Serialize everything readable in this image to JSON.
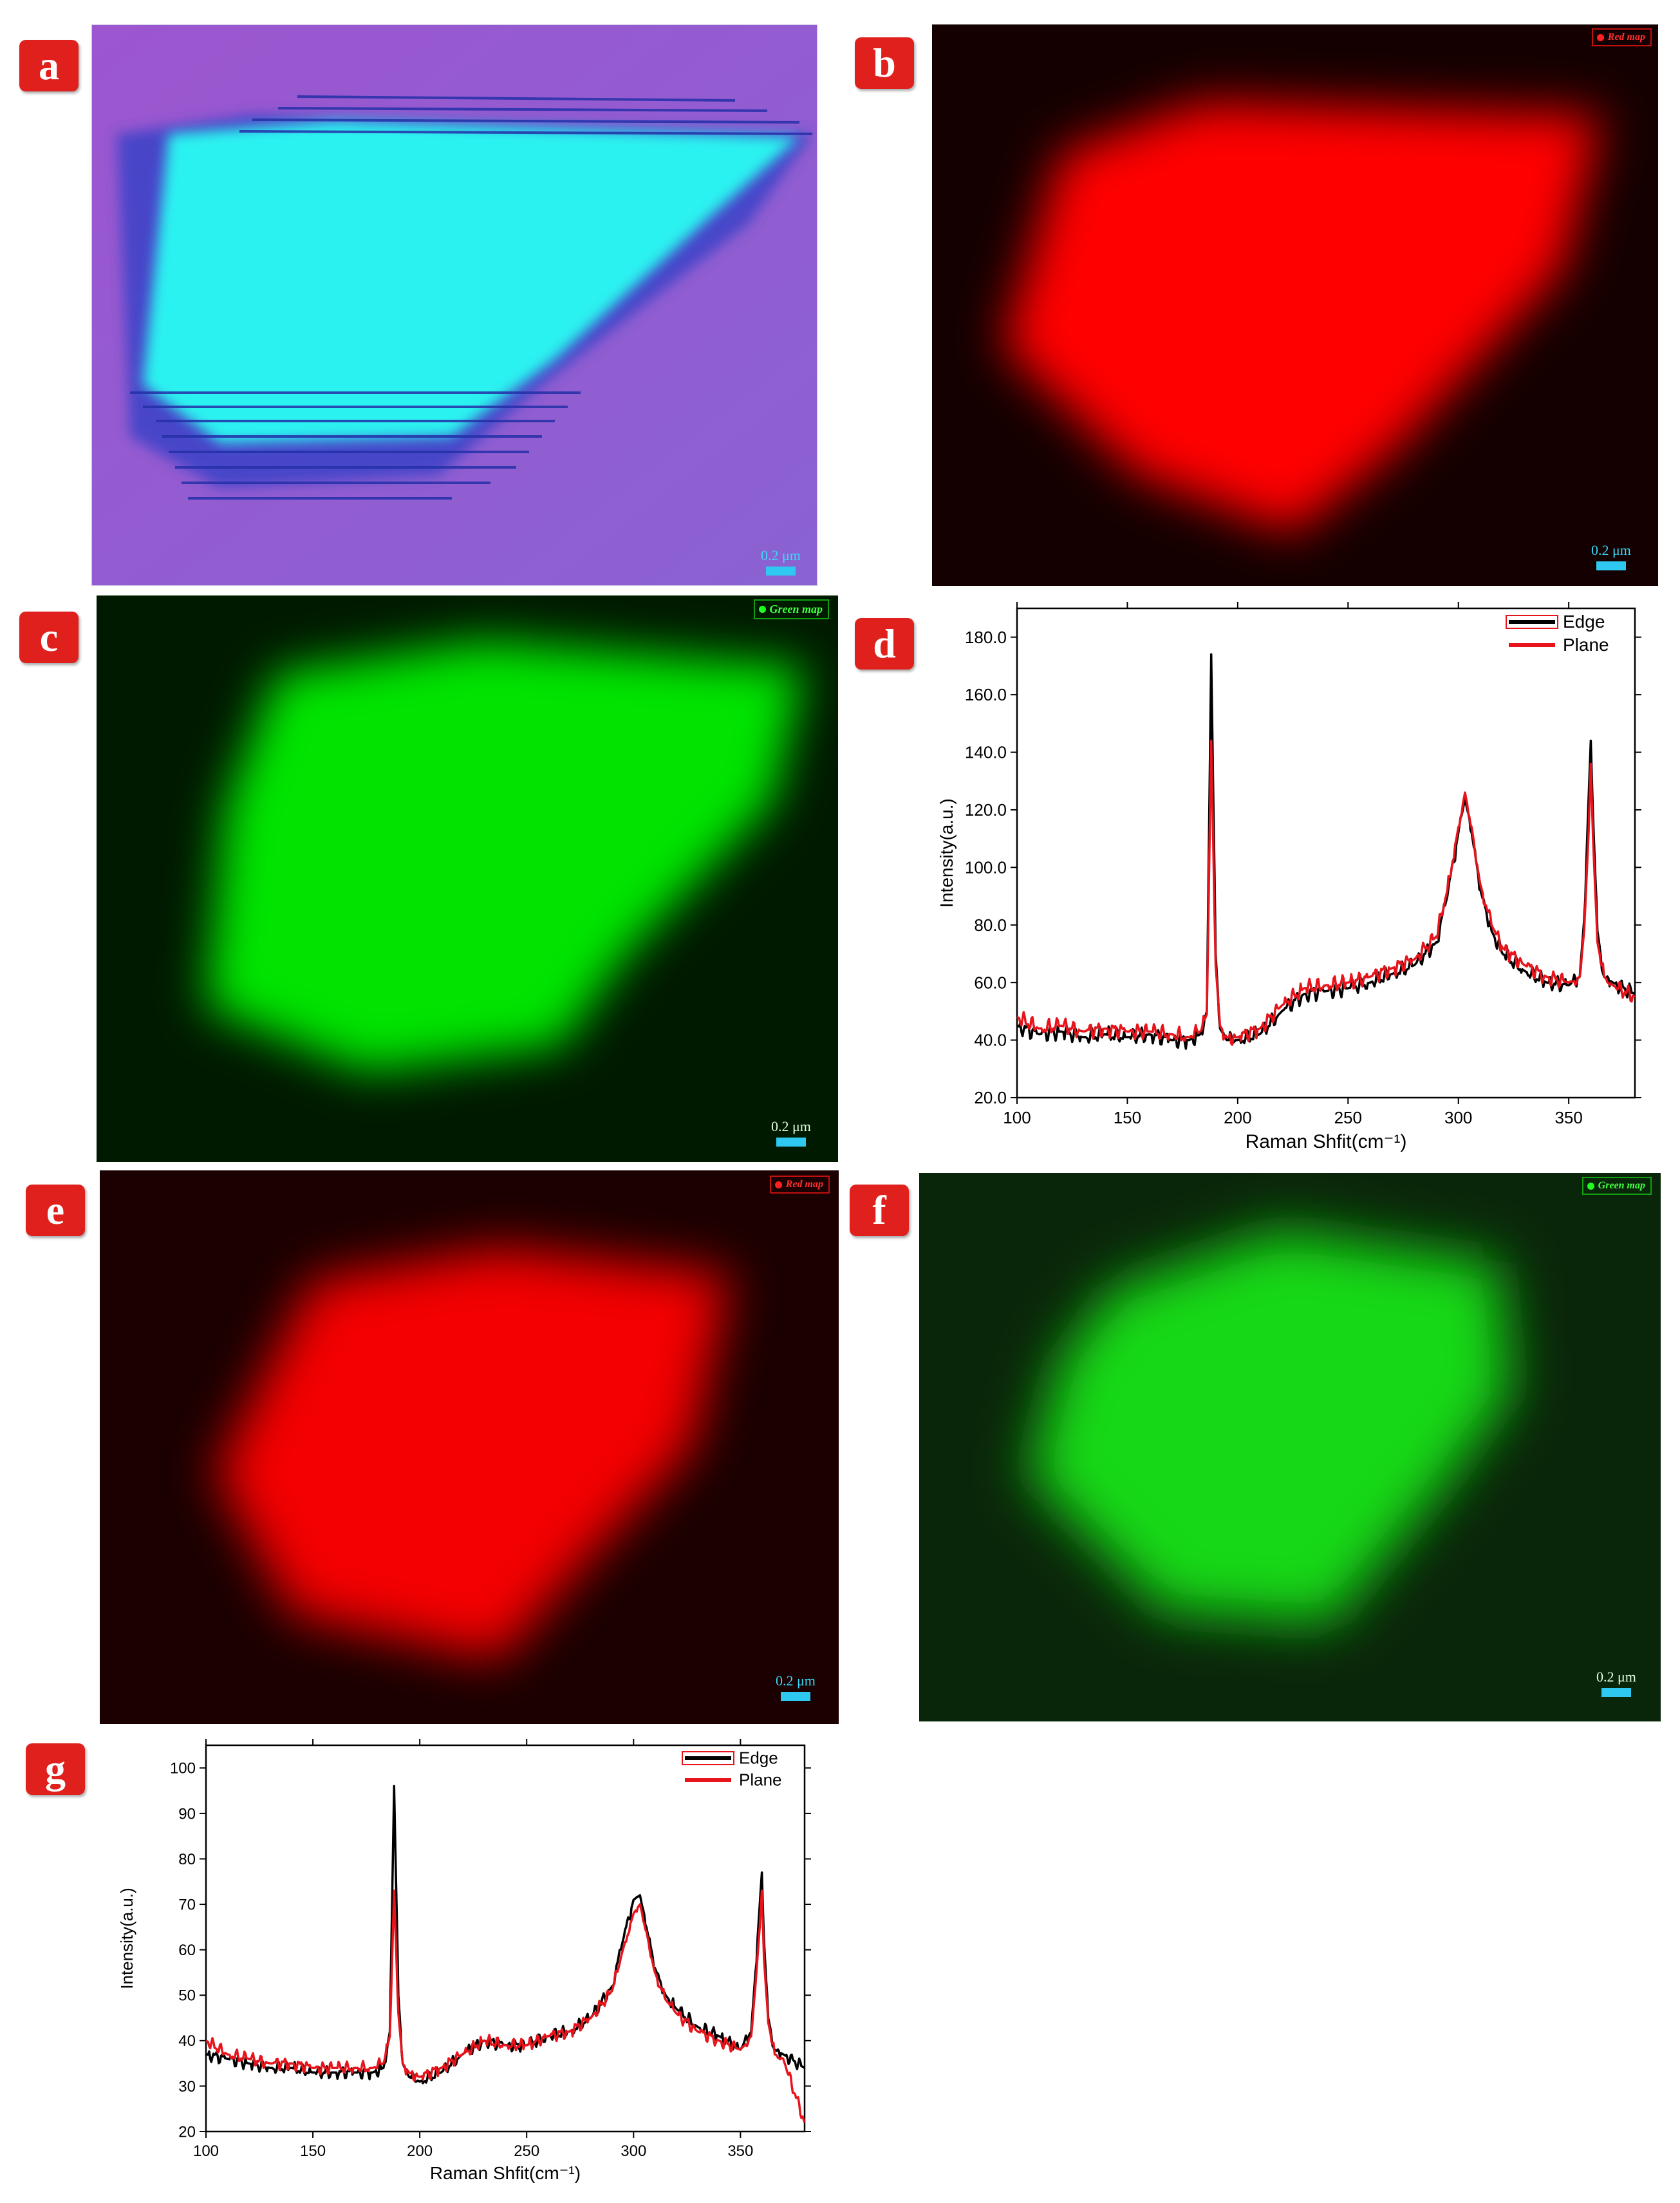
{
  "panels": {
    "a": {
      "letter": "a",
      "scale_label": "0.2 μm"
    },
    "b": {
      "letter": "b",
      "scale_label": "0.2 μm",
      "map_label": "Red map"
    },
    "c": {
      "letter": "c",
      "scale_label": "0.2 μm",
      "map_label": "Green map"
    },
    "d": {
      "letter": "d"
    },
    "e": {
      "letter": "e",
      "scale_label": "0.2 μm",
      "map_label": "Red map"
    },
    "f": {
      "letter": "f",
      "scale_label": "0.2 μm",
      "map_label": "Green map"
    },
    "g": {
      "letter": "g"
    }
  },
  "colors": {
    "badge": "#e0201c",
    "scale_bar": "#2ec8f0",
    "edge": "#000000",
    "plane": "#e8141c",
    "red_map": "#ff0a0a",
    "green_map": "#00e000",
    "optical_flake": "#2af2f0",
    "optical_substrate": "#8a5ad0"
  },
  "chart_data": [
    {
      "panel": "d",
      "type": "line",
      "xlabel": "Raman Shfit(cm⁻¹)",
      "ylabel": "Intensity(a.u.)",
      "xlim": [
        100,
        380
      ],
      "ylim": [
        20,
        190
      ],
      "x_ticks": [
        100,
        150,
        200,
        250,
        300,
        350
      ],
      "x_tick_labels": [
        "100",
        "150",
        "200",
        "250",
        "300",
        "350"
      ],
      "y_ticks": [
        20,
        40,
        60,
        80,
        100,
        120,
        140,
        160,
        180
      ],
      "y_tick_labels": [
        "20.0",
        "40.0",
        "60.0",
        "80.0",
        "100.0",
        "120.0",
        "140.0",
        "160.0",
        "180.0"
      ],
      "legend_position": "top-right",
      "series": [
        {
          "name": "Edge",
          "color": "#000000",
          "x": [
            100,
            110,
            120,
            130,
            140,
            150,
            160,
            170,
            178,
            183,
            186,
            188,
            190,
            192,
            195,
            200,
            210,
            220,
            230,
            240,
            250,
            260,
            270,
            280,
            290,
            295,
            300,
            303,
            306,
            310,
            315,
            320,
            330,
            340,
            350,
            355,
            357,
            359,
            360,
            361,
            363,
            366,
            370,
            380
          ],
          "y": [
            45,
            42,
            43,
            41,
            42,
            41,
            42,
            40,
            40,
            42,
            50,
            174,
            70,
            44,
            40,
            40,
            42,
            50,
            56,
            57,
            58,
            60,
            63,
            66,
            74,
            90,
            112,
            124,
            112,
            92,
            78,
            70,
            64,
            60,
            59,
            62,
            82,
            124,
            144,
            118,
            78,
            62,
            60,
            56
          ]
        },
        {
          "name": "Plane",
          "color": "#e8141c",
          "x": [
            100,
            110,
            120,
            130,
            140,
            150,
            160,
            170,
            178,
            183,
            186,
            188,
            190,
            192,
            195,
            200,
            210,
            220,
            230,
            240,
            250,
            260,
            270,
            280,
            290,
            295,
            300,
            303,
            306,
            310,
            315,
            320,
            330,
            340,
            350,
            355,
            357,
            359,
            360,
            361,
            363,
            366,
            370,
            380
          ],
          "y": [
            48,
            44,
            45,
            43,
            44,
            43,
            43,
            42,
            41,
            43,
            49,
            144,
            66,
            45,
            41,
            41,
            44,
            52,
            58,
            59,
            60,
            62,
            65,
            68,
            76,
            92,
            114,
            126,
            114,
            94,
            80,
            72,
            66,
            62,
            60,
            62,
            78,
            112,
            136,
            110,
            74,
            62,
            59,
            55
          ]
        }
      ]
    },
    {
      "panel": "g",
      "type": "line",
      "xlabel": "Raman Shfit(cm⁻¹)",
      "ylabel": "Intensity(a.u.)",
      "xlim": [
        100,
        380
      ],
      "ylim": [
        20,
        105
      ],
      "x_ticks": [
        100,
        150,
        200,
        250,
        300,
        350
      ],
      "x_tick_labels": [
        "100",
        "150",
        "200",
        "250",
        "300",
        "350"
      ],
      "y_ticks": [
        20,
        30,
        40,
        50,
        60,
        70,
        80,
        90,
        100
      ],
      "y_tick_labels": [
        "20",
        "30",
        "40",
        "50",
        "60",
        "70",
        "80",
        "90",
        "100"
      ],
      "legend_position": "top-right",
      "series": [
        {
          "name": "Edge",
          "color": "#000000",
          "x": [
            100,
            110,
            120,
            130,
            140,
            150,
            160,
            170,
            178,
            183,
            186,
            188,
            190,
            192,
            195,
            200,
            210,
            220,
            230,
            240,
            250,
            260,
            270,
            280,
            290,
            295,
            300,
            303,
            306,
            310,
            315,
            320,
            330,
            340,
            350,
            355,
            357,
            359,
            360,
            361,
            363,
            366,
            370,
            380
          ],
          "y": [
            37,
            36,
            35,
            34,
            34,
            33,
            33,
            33,
            33,
            34,
            42,
            96,
            50,
            35,
            32,
            31,
            33,
            37,
            40,
            39,
            39,
            41,
            42,
            45,
            52,
            62,
            71,
            72,
            65,
            56,
            50,
            47,
            43,
            41,
            38,
            42,
            55,
            70,
            77,
            62,
            45,
            38,
            37,
            34
          ]
        },
        {
          "name": "Plane",
          "color": "#e8141c",
          "x": [
            100,
            110,
            120,
            130,
            140,
            150,
            160,
            170,
            178,
            183,
            186,
            188,
            190,
            192,
            195,
            200,
            210,
            220,
            230,
            240,
            250,
            260,
            270,
            280,
            290,
            295,
            300,
            303,
            306,
            310,
            315,
            320,
            330,
            340,
            350,
            355,
            357,
            359,
            360,
            361,
            363,
            366,
            370,
            380
          ],
          "y": [
            40,
            37,
            36,
            35,
            35,
            34,
            34,
            34,
            34,
            35,
            41,
            73,
            46,
            35,
            33,
            32,
            34,
            37,
            40,
            39,
            39,
            41,
            42,
            45,
            51,
            60,
            68,
            70,
            64,
            55,
            49,
            46,
            42,
            40,
            38,
            41,
            52,
            65,
            73,
            58,
            44,
            37,
            36,
            22
          ]
        }
      ]
    }
  ]
}
